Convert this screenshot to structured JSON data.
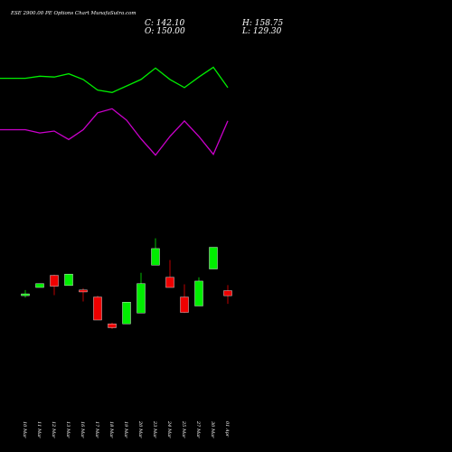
{
  "title": "ESE 2900.00  PE Options  Chart Munafa",
  "watermark": "Sutra.com",
  "ohlc": {
    "close_label": "C: 142.10",
    "open_label": "O: 150.00",
    "high_label": "H: 158.75",
    "low_label": "L: 129.30"
  },
  "colors": {
    "background": "#000000",
    "up": "#00ee00",
    "down": "#ee0000",
    "line_upper": "#00ee00",
    "line_lower": "#cc00cc",
    "text": "#ffffff"
  },
  "chart_data": {
    "type": "candlestick",
    "categories": [
      "10 Mar",
      "11 Mar",
      "12 Mar",
      "13 Mar",
      "16 Mar",
      "17 Mar",
      "18 Mar",
      "19 Mar",
      "20 Mar",
      "23 Mar",
      "24 Mar",
      "25 Mar",
      "27 Mar",
      "30 Mar",
      "01 Apr"
    ],
    "candles": [
      {
        "o": 145.0,
        "h": 151.0,
        "l": 139.0,
        "c": 143.0,
        "dir": "up"
      },
      {
        "o": 155.0,
        "h": 161.0,
        "l": 155.0,
        "c": 161.0,
        "dir": "up"
      },
      {
        "o": 174.0,
        "h": 175.0,
        "l": 143.0,
        "c": 157.0,
        "dir": "down"
      },
      {
        "o": 158.0,
        "h": 176.0,
        "l": 158.0,
        "c": 176.0,
        "dir": "up"
      },
      {
        "o": 151.0,
        "h": 154.0,
        "l": 133.0,
        "c": 148.0,
        "dir": "down"
      },
      {
        "o": 140.0,
        "h": 142.0,
        "l": 104.0,
        "c": 104.0,
        "dir": "down"
      },
      {
        "o": 98.0,
        "h": 100.0,
        "l": 90.0,
        "c": 92.0,
        "dir": "down"
      },
      {
        "o": 98.0,
        "h": 132.0,
        "l": 98.0,
        "c": 132.0,
        "dir": "up"
      },
      {
        "o": 115.0,
        "h": 178.0,
        "l": 115.0,
        "c": 161.0,
        "dir": "up"
      },
      {
        "o": 190.0,
        "h": 232.0,
        "l": 190.0,
        "c": 216.0,
        "dir": "up"
      },
      {
        "o": 171.0,
        "h": 198.0,
        "l": 155.0,
        "c": 155.0,
        "dir": "down"
      },
      {
        "o": 140.0,
        "h": 160.0,
        "l": 115.0,
        "c": 116.0,
        "dir": "down"
      },
      {
        "o": 126.0,
        "h": 171.0,
        "l": 126.0,
        "c": 165.0,
        "dir": "up"
      },
      {
        "o": 184.0,
        "h": 218.0,
        "l": 184.0,
        "c": 218.0,
        "dir": "up"
      },
      {
        "o": 150.0,
        "h": 158.75,
        "l": 129.3,
        "c": 142.1,
        "dir": "down"
      }
    ],
    "upper_line": [
      85.2,
      85.2,
      86.5,
      86.0,
      88.0,
      84.5,
      78.0,
      76.5,
      80.5,
      84.5,
      91.5,
      84.5,
      79.5,
      86.0,
      92.0,
      79.5
    ],
    "lower_line": [
      53.6,
      53.6,
      51.6,
      52.8,
      47.6,
      53.6,
      64.0,
      66.5,
      59.5,
      48.0,
      38.0,
      49.5,
      59.0,
      49.5,
      38.5,
      59.0
    ],
    "line_x_index": [
      -1.5,
      0,
      1,
      2,
      3,
      4,
      5,
      6,
      7,
      8,
      9,
      10,
      11,
      12,
      13,
      14
    ],
    "ylim": [
      70,
      240
    ],
    "line_ylim": [
      0,
      100
    ]
  }
}
